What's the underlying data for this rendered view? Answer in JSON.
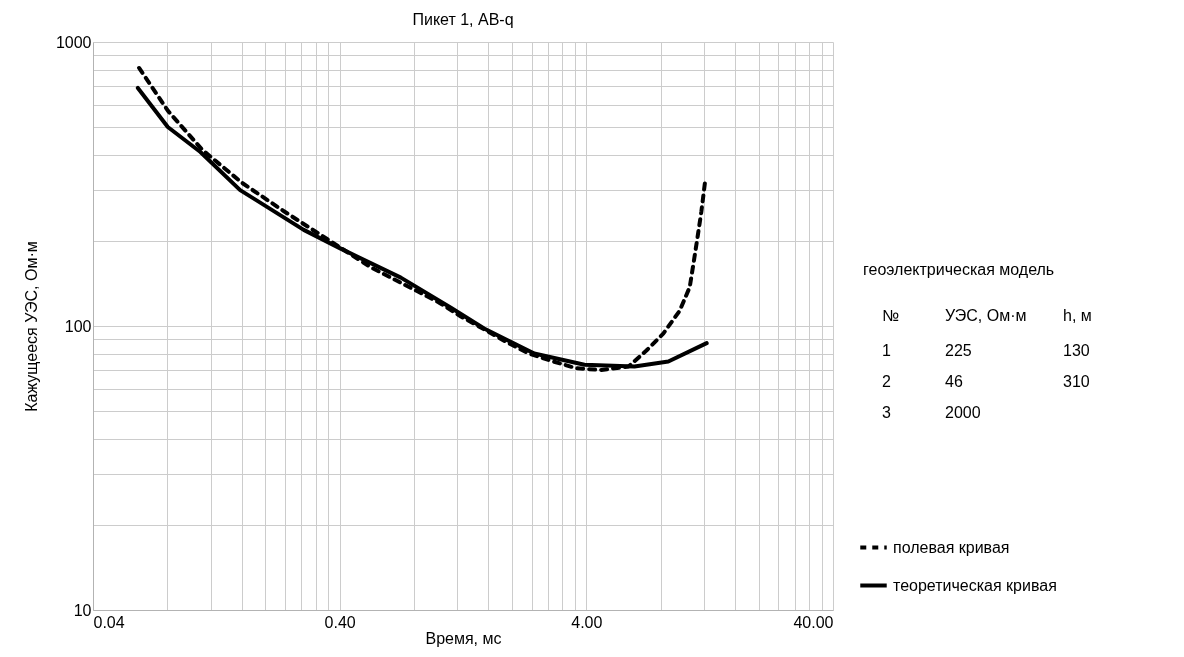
{
  "chart_data": {
    "type": "line",
    "title": "Пикет 1, АВ-q",
    "xlabel": "Время, мс",
    "ylabel": "Кажущееся УЭС, Ом·м",
    "log": "xy",
    "grid": true,
    "legend": "bottom right",
    "marker": "none",
    "xlim": [
      0.04,
      40
    ],
    "xticks": [
      0.04,
      {
        "value": 0.08,
        "label": null
      },
      {
        "value": 0.12,
        "label": null
      },
      {
        "value": 0.16,
        "label": null
      },
      {
        "value": 0.2,
        "label": null
      },
      {
        "value": 0.24,
        "label": null
      },
      {
        "value": 0.28,
        "label": null
      },
      {
        "value": 0.32,
        "label": null
      },
      {
        "value": 0.36,
        "label": null
      },
      {
        "value": 0.4,
        "label": "0.40"
      },
      {
        "value": 0.8,
        "label": null
      },
      {
        "value": 1.2,
        "label": null
      },
      {
        "value": 1.6,
        "label": null
      },
      {
        "value": 2,
        "label": null
      },
      {
        "value": 2.4,
        "label": null
      },
      {
        "value": 2.8,
        "label": null
      },
      {
        "value": 3.2,
        "label": null
      },
      {
        "value": 3.6,
        "label": null
      },
      {
        "value": 4,
        "label": "4.00"
      },
      {
        "value": 8,
        "label": null
      },
      {
        "value": 12,
        "label": null
      },
      {
        "value": 16,
        "label": null
      },
      {
        "value": 20,
        "label": null
      },
      {
        "value": 24,
        "label": null
      },
      {
        "value": 28,
        "label": null
      },
      {
        "value": 32,
        "label": null
      },
      {
        "value": 36,
        "label": null
      },
      {
        "value": 40,
        "label": "40.00"
      }
    ],
    "ylim": [
      10,
      1000
    ],
    "yticks": [
      10,
      {
        "value": 20,
        "label": null
      },
      {
        "value": 30,
        "label": null
      },
      {
        "value": 40,
        "label": null
      },
      {
        "value": 50,
        "label": null
      },
      {
        "value": 60,
        "label": null
      },
      {
        "value": 70,
        "label": null
      },
      {
        "value": 80,
        "label": null
      },
      {
        "value": 90,
        "label": null
      },
      100,
      {
        "value": 200,
        "label": null
      },
      {
        "value": 300,
        "label": null
      },
      {
        "value": 400,
        "label": null
      },
      {
        "value": 500,
        "label": null
      },
      {
        "value": 600,
        "label": null
      },
      {
        "value": 700,
        "label": null
      },
      {
        "value": 800,
        "label": null
      },
      {
        "value": 900,
        "label": null
      },
      1000
    ],
    "series": [
      {
        "name": "полевая кривая",
        "color": "#000000",
        "line_style": "dashed",
        "x": [
          0.0615,
          0.0807,
          0.111,
          0.161,
          0.237,
          0.357,
          0.535,
          0.82,
          1.01,
          1.24,
          1.52,
          1.89,
          2.34,
          2.94,
          3.64,
          4.6,
          5.93,
          7.01,
          8.2,
          9.55,
          10.5,
          10.9,
          11.3,
          11.7,
          12.1
        ],
        "values": [
          810,
          571,
          417,
          319,
          254,
          202,
          161,
          133,
          121,
          108,
          98,
          88,
          80,
          75,
          71,
          70,
          72,
          82,
          94,
          113,
          137,
          168,
          206,
          252,
          319
        ]
      },
      {
        "name": "теоретическая кривая",
        "color": "#000000",
        "line_style": "solid",
        "x": [
          0.0608,
          0.0804,
          0.109,
          0.158,
          0.286,
          0.4,
          0.708,
          1.13,
          1.54,
          2.46,
          3.93,
          6.27,
          8.6,
          12.3
        ],
        "values": [
          689,
          502,
          410,
          301,
          218,
          188,
          148,
          116,
          98,
          80,
          73,
          72,
          75,
          87
        ]
      }
    ],
    "annotations": [
      "геоэлектрическая модель",
      "№",
      "УЭС, Ом·м",
      "h, м",
      "1",
      "225",
      "130",
      "2",
      "46",
      "310",
      "3",
      "2000"
    ]
  }
}
